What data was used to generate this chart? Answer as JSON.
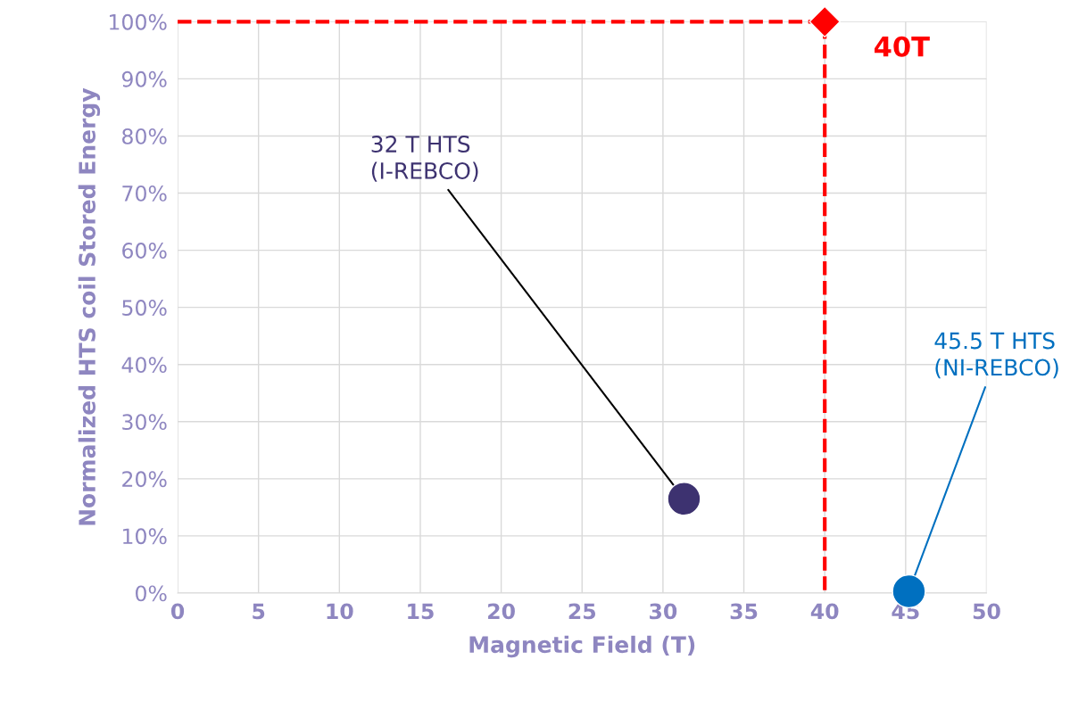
{
  "chart_data": {
    "type": "scatter",
    "xlabel": "Magnetic Field (T)",
    "ylabel": "Normalized HTS coil Stored Energy",
    "xlim": [
      0,
      50
    ],
    "xticks": [
      0,
      5,
      10,
      15,
      20,
      25,
      30,
      35,
      40,
      45,
      50
    ],
    "ylim": [
      0,
      100
    ],
    "yticks": [
      {
        "value": 0,
        "label": "0%"
      },
      {
        "value": 10,
        "label": "10%"
      },
      {
        "value": 20,
        "label": "20%"
      },
      {
        "value": 30,
        "label": "30%"
      },
      {
        "value": 40,
        "label": "40%"
      },
      {
        "value": 50,
        "label": "50%"
      },
      {
        "value": 60,
        "label": "60%"
      },
      {
        "value": 70,
        "label": "70%"
      },
      {
        "value": 80,
        "label": "80%"
      },
      {
        "value": 90,
        "label": "90%"
      },
      {
        "value": 100,
        "label": "100%"
      }
    ],
    "grid": true,
    "series": [
      {
        "type": "line",
        "color": "#ff0000",
        "x": [
          0,
          20,
          40,
          40,
          40
        ],
        "values": [
          100,
          100,
          100,
          50,
          0
        ],
        "line_style": "dashed",
        "marker": "none"
      },
      {
        "color": "#ff0000",
        "x": [
          40
        ],
        "values": [
          100
        ],
        "marker": "diamond"
      },
      {
        "color": "#3d3270",
        "x": [
          31.3
        ],
        "values": [
          16.5
        ],
        "marker": "circle"
      },
      {
        "color": "#0070c0",
        "x": [
          45.2
        ],
        "values": [
          0.3
        ],
        "marker": "circle"
      }
    ],
    "annotations": [
      {
        "text": "40T",
        "x": 40,
        "y": 100
      },
      {
        "text": "32 T HTS\n(I-REBCO)",
        "x": 31.3,
        "y": 16.5
      },
      {
        "text": "45.5 T HTS\n(NI-REBCO)",
        "x": 45.2,
        "y": 0.3
      }
    ]
  }
}
